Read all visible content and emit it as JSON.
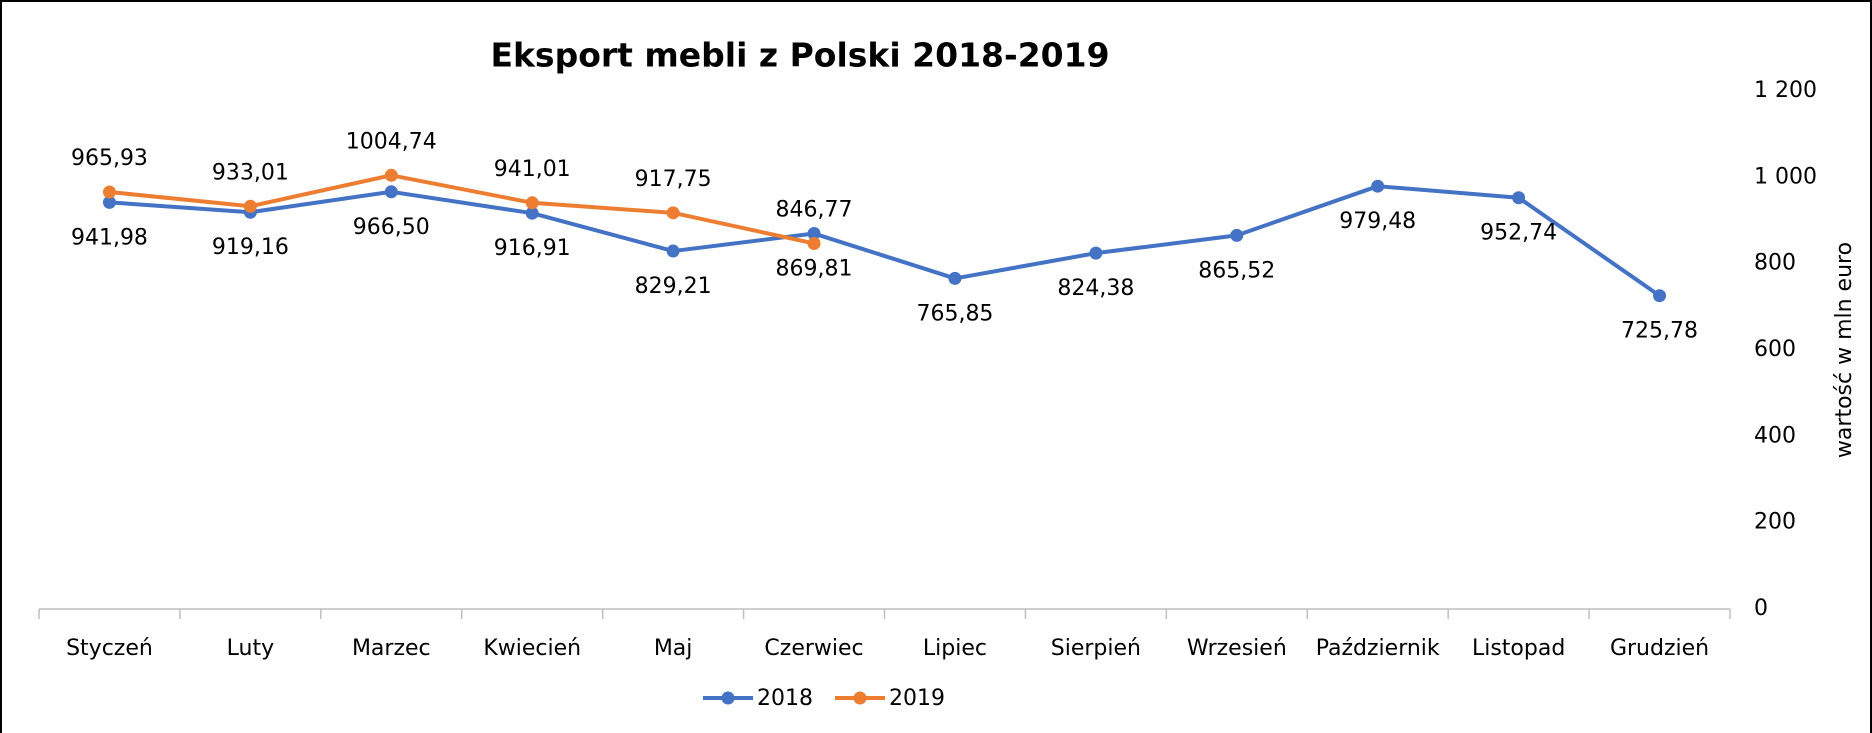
{
  "chart_data": {
    "type": "line",
    "title": "Eksport mebli z Polski 2018-2019",
    "y_axis_label": "wartość w mln euro",
    "categories": [
      "Styczeń",
      "Luty",
      "Marzec",
      "Kwiecień",
      "Maj",
      "Czerwiec",
      "Lipiec",
      "Sierpień",
      "Wrzesień",
      "Październik",
      "Listopad",
      "Grudzień"
    ],
    "series": [
      {
        "name": "2018",
        "color": "#4472c4",
        "values": [
          941.98,
          919.16,
          966.5,
          916.91,
          829.21,
          869.81,
          765.85,
          824.38,
          865.52,
          979.48,
          952.74,
          725.78
        ],
        "value_labels": [
          "941,98",
          "919,16",
          "966,50",
          "916,91",
          "829,21",
          "869,81",
          "765,85",
          "824,38",
          "865,52",
          "979,48",
          "952,74",
          "725,78"
        ]
      },
      {
        "name": "2019",
        "color": "#ed7d31",
        "values": [
          965.93,
          933.01,
          1004.74,
          941.01,
          917.75,
          846.77,
          null,
          null,
          null,
          null,
          null,
          null
        ],
        "value_labels": [
          "965,93",
          "933,01",
          "1004,74",
          "941,01",
          "917,75",
          "846,77",
          null,
          null,
          null,
          null,
          null,
          null
        ]
      }
    ],
    "ylim": [
      0,
      1200
    ],
    "yticks": [
      0,
      200,
      400,
      600,
      800,
      {
        "value": 1000,
        "label": "1 000"
      },
      {
        "value": 1200,
        "label": "1 200"
      }
    ],
    "y_axis_side": "right",
    "grid": false,
    "legend": "bottom"
  }
}
